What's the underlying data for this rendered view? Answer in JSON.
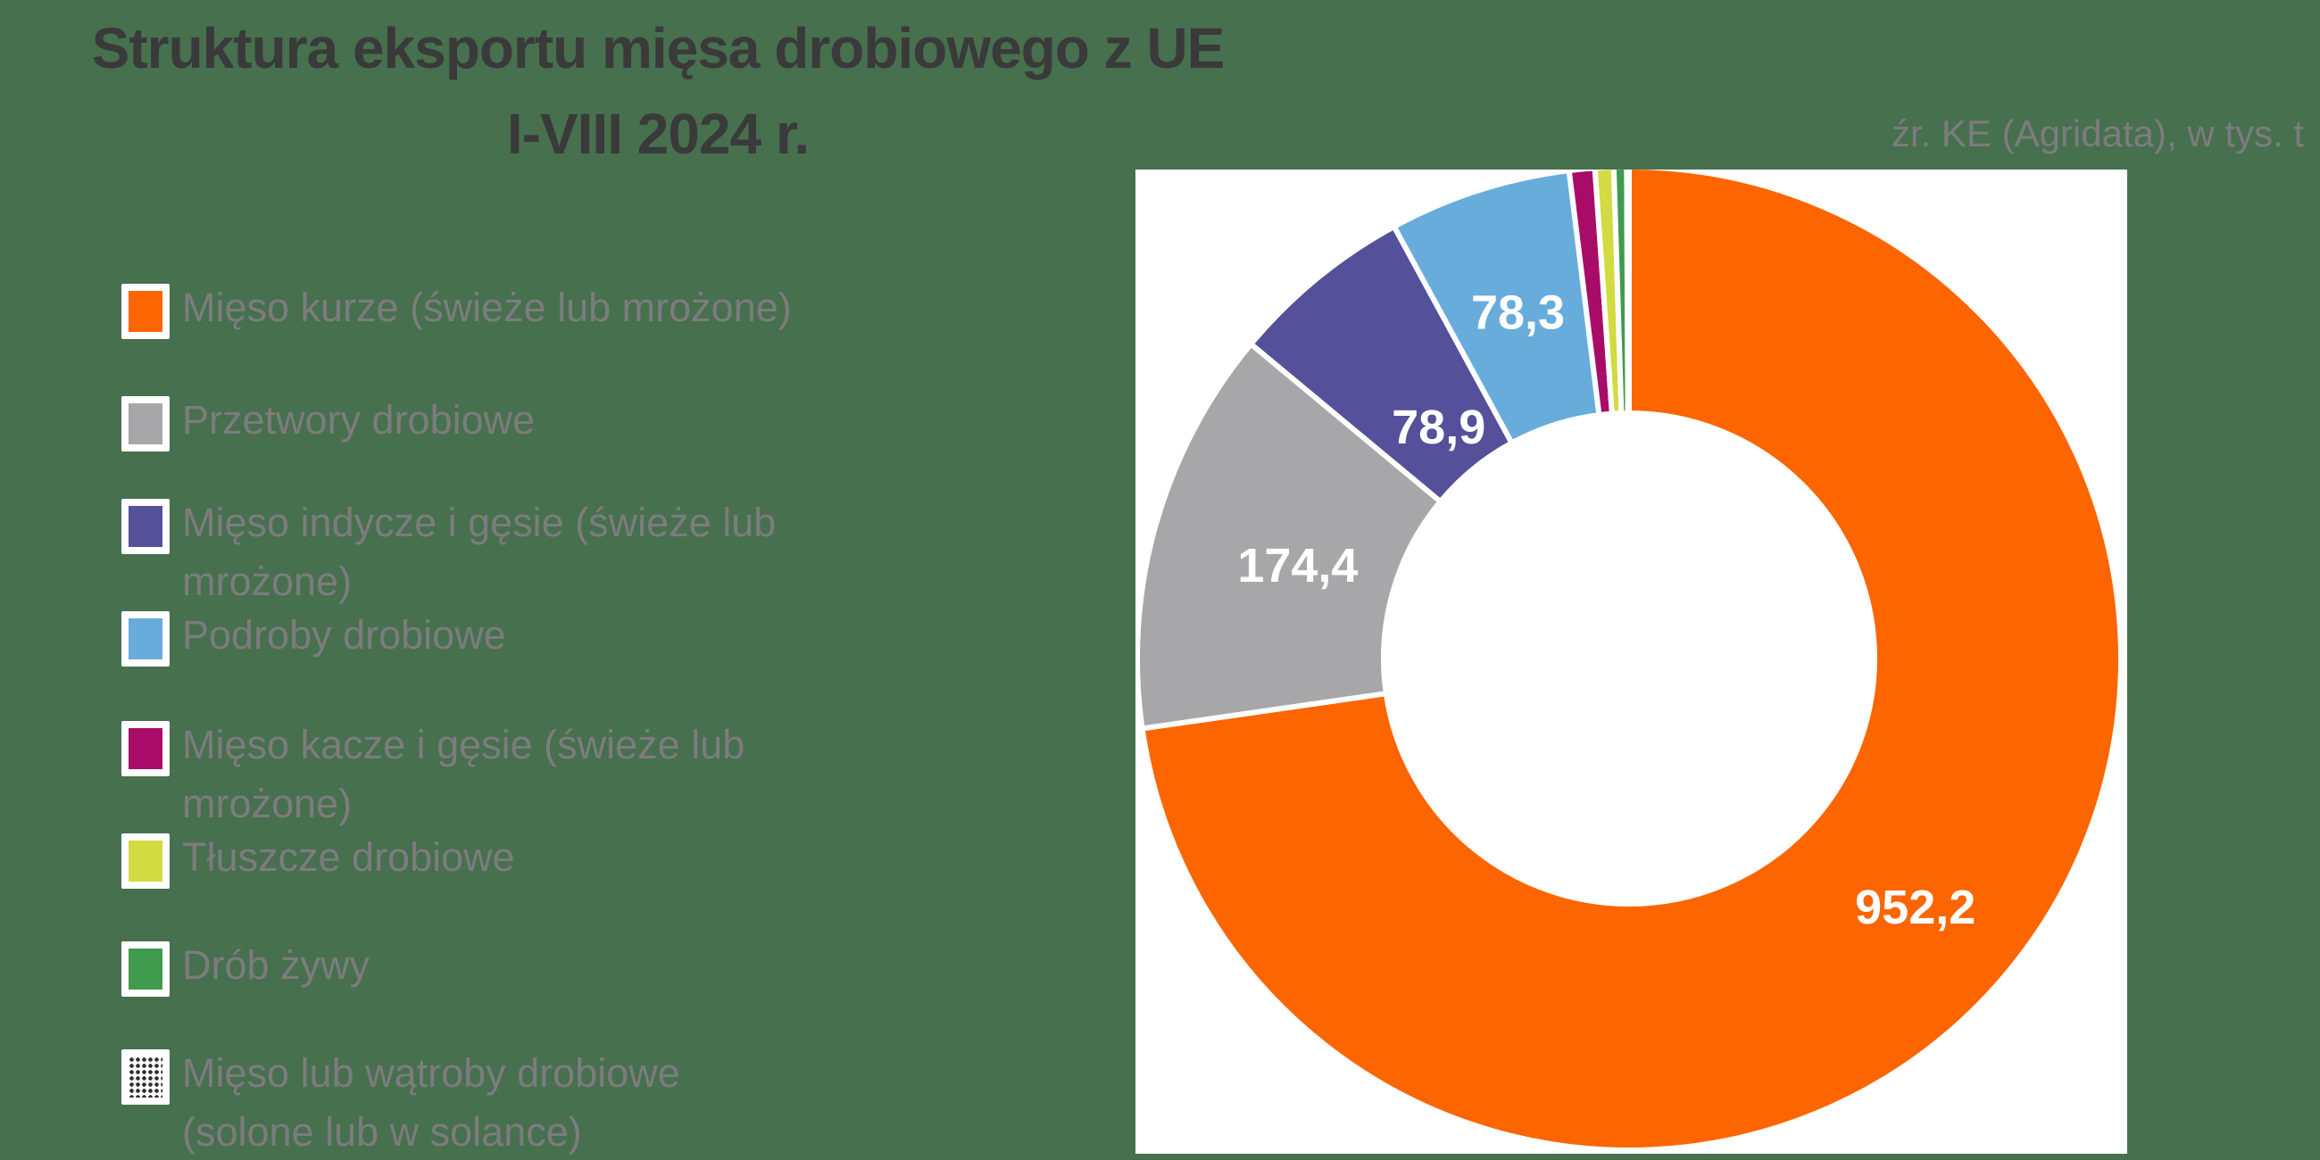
{
  "title": {
    "line1": "Struktura eksportu mięsa drobiowego z UE",
    "line2": "I-VIII 2024 r."
  },
  "source_note": "źr. KE (Agridata), w tys. t",
  "colors": {
    "background": "#47704E",
    "plot_background": "#FFFFFF",
    "title_text": "#3A3A3A",
    "muted_text": "#7C7C7E",
    "value_label_text": "#FFFFFF",
    "slice_border": "#FFFFFF"
  },
  "chart_data": {
    "type": "pie",
    "subtype": "donut",
    "title": "Struktura eksportu mięsa drobiowego z UE I-VIII 2024 r.",
    "unit": "tys. t",
    "source": "KE (Agridata)",
    "donut_hole_ratio": 0.5,
    "start_angle_deg": 0,
    "direction": "clockwise",
    "legend_position": "left",
    "slices": [
      {
        "label": "Mięso kurze (świeże lub mrożone)",
        "value": 952.2,
        "display_value": "952,2",
        "color": "#FD6500",
        "estimated": false
      },
      {
        "label": "Przetwory drobiowe",
        "value": 174.4,
        "display_value": "174,4",
        "color": "#A7A7A9",
        "estimated": false
      },
      {
        "label": "Mięso indycze i gęsie (świeże lub mrożone)",
        "value": 78.9,
        "display_value": "78,9",
        "color": "#54509A",
        "estimated": false
      },
      {
        "label": "Podroby drobiowe",
        "value": 78.3,
        "display_value": "78,3",
        "color": "#68ACDC",
        "estimated": false
      },
      {
        "label": "Mięso kacze i gęsie (świeże lub mrożone)",
        "value": 11.0,
        "display_value": "",
        "color": "#A80C68",
        "estimated": true
      },
      {
        "label": "Tłuszcze drobiowe",
        "value": 8.0,
        "display_value": "",
        "color": "#D2DB41",
        "estimated": true
      },
      {
        "label": "Drób żywy",
        "value": 5.5,
        "display_value": "",
        "color": "#3F9B4E",
        "estimated": true
      },
      {
        "label": "Mięso lub wątroby drobiowe (solone lub w solance)",
        "value": 1.0,
        "display_value": "",
        "color": "#3F3F3F",
        "pattern": "dots",
        "estimated": true
      }
    ]
  }
}
